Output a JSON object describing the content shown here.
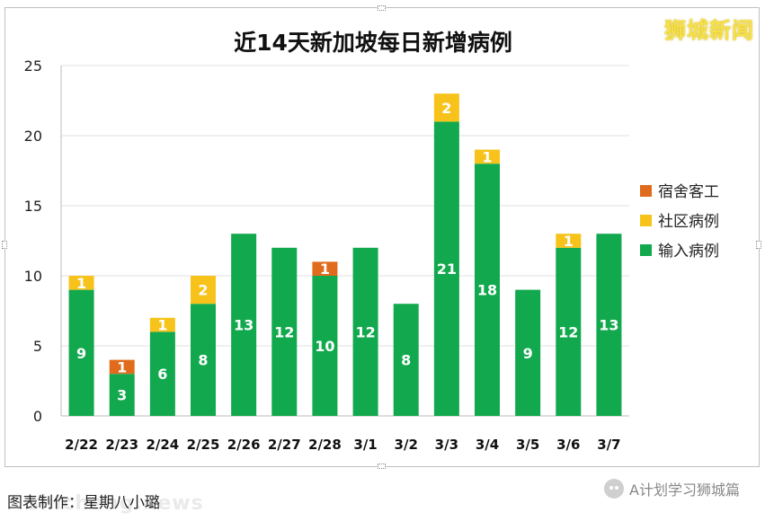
{
  "watermark": {
    "brand": "狮城新闻",
    "website": "shicheng.news",
    "account": "A计划学习狮城篇"
  },
  "footnote": "图表制作：星期八小璐",
  "chart_data": {
    "type": "bar",
    "stacked": true,
    "title": "近14天新加坡每日新增病例",
    "xlabel": "",
    "ylabel": "",
    "ylim": [
      0,
      25
    ],
    "yticks": [
      0,
      5,
      10,
      15,
      20,
      25
    ],
    "grid": true,
    "legend_position": "right",
    "categories": [
      "2/22",
      "2/23",
      "2/24",
      "2/25",
      "2/26",
      "2/27",
      "2/28",
      "3/1",
      "3/2",
      "3/3",
      "3/4",
      "3/5",
      "3/6",
      "3/7"
    ],
    "series": [
      {
        "name": "输入病例",
        "color": "#12a94e",
        "values": [
          9,
          3,
          6,
          8,
          13,
          12,
          10,
          12,
          8,
          21,
          18,
          9,
          12,
          13
        ]
      },
      {
        "name": "社区病例",
        "color": "#f7c31a",
        "values": [
          1,
          0,
          1,
          2,
          0,
          0,
          0,
          0,
          0,
          2,
          1,
          0,
          1,
          0
        ]
      },
      {
        "name": "宿舍客工",
        "color": "#e06b1c",
        "values": [
          0,
          1,
          0,
          0,
          0,
          0,
          1,
          0,
          0,
          0,
          0,
          0,
          0,
          0
        ]
      }
    ],
    "legend_order": [
      "宿舍客工",
      "社区病例",
      "输入病例"
    ]
  }
}
